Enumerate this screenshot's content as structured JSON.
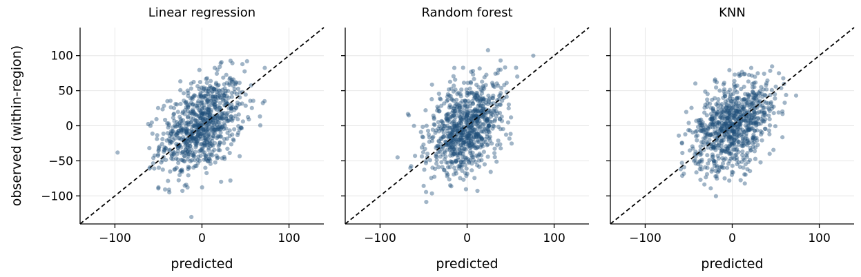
{
  "colors": {
    "points": "#1f4e79",
    "diagonal": "#000000",
    "grid": "#e6e6e6"
  },
  "chart_data": [
    {
      "type": "scatter",
      "title": "Linear regression",
      "xlabel": "predicted",
      "ylabel": "observed (within-region)",
      "xlim": [
        -140,
        140
      ],
      "ylim": [
        -140,
        140
      ],
      "xticks": [
        -100,
        0,
        100
      ],
      "xtick_labels": [
        "−100",
        "0",
        "100"
      ],
      "yticks": [
        -100,
        -50,
        0,
        50,
        100
      ],
      "ytick_labels": [
        "−100",
        "−50",
        "0",
        "50",
        "100"
      ],
      "grid": true,
      "reference_line": "y = x",
      "slope": 0.55,
      "x_sd": 24,
      "noise_sd": 32,
      "n_points": 800
    },
    {
      "type": "scatter",
      "title": "Random forest",
      "xlabel": "predicted",
      "ylabel": "",
      "xlim": [
        -140,
        140
      ],
      "ylim": [
        -140,
        140
      ],
      "xticks": [
        -100,
        0,
        100
      ],
      "xtick_labels": [
        "−100",
        "0",
        "100"
      ],
      "yticks": [
        -100,
        -50,
        0,
        50,
        100
      ],
      "ytick_labels": [],
      "grid": true,
      "reference_line": "y = x",
      "slope": 0.6,
      "x_sd": 22,
      "noise_sd": 32,
      "n_points": 800
    },
    {
      "type": "scatter",
      "title": "KNN",
      "xlabel": "predicted",
      "ylabel": "",
      "xlim": [
        -140,
        140
      ],
      "ylim": [
        -140,
        140
      ],
      "xticks": [
        -100,
        0,
        100
      ],
      "xtick_labels": [
        "−100",
        "0",
        "100"
      ],
      "yticks": [
        -100,
        -50,
        0,
        50,
        100
      ],
      "ytick_labels": [],
      "grid": true,
      "reference_line": "y = x",
      "slope": 0.55,
      "x_sd": 24,
      "noise_sd": 32,
      "n_points": 800
    }
  ]
}
